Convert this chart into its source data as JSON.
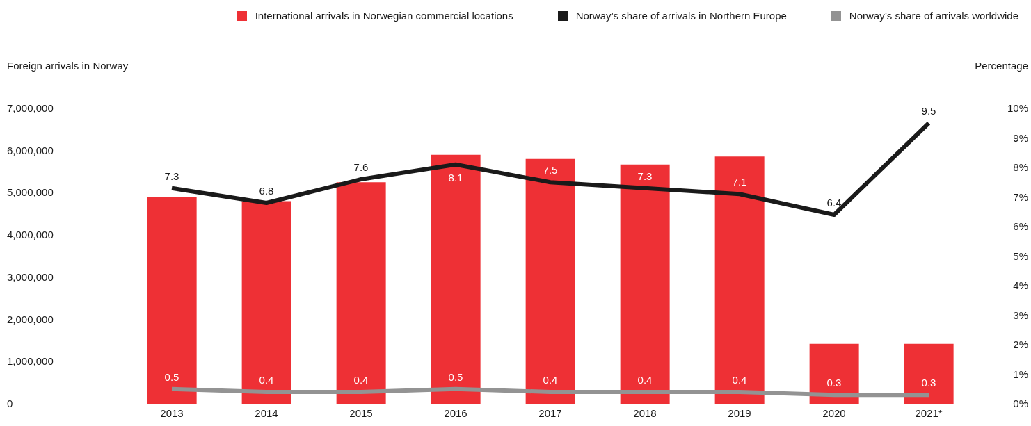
{
  "chart_data": {
    "type": "bar",
    "categories": [
      "2013",
      "2014",
      "2015",
      "2016",
      "2017",
      "2018",
      "2019",
      "2020",
      "2021*"
    ],
    "ylabel": "Foreign arrivals in Norway",
    "y2label": "Percentage",
    "series": [
      {
        "name": "International arrivals in Norwegian commercial locations",
        "color": "#ee3035",
        "values": [
          4900000,
          4800000,
          5250000,
          5900000,
          5800000,
          5670000,
          5860000,
          1420000,
          1420000
        ]
      },
      {
        "name": "Norway’s share of arrivals in Northern Europe",
        "type": "line",
        "axis": "y2",
        "color": "#1a1a1a",
        "values": [
          7.3,
          6.8,
          7.6,
          8.1,
          7.5,
          7.3,
          7.1,
          6.4,
          9.5
        ],
        "value_labels": [
          "7.3",
          "6.8",
          "7.6",
          "8.1",
          "7.5",
          "7.3",
          "7.1",
          "6.4",
          "9.5"
        ]
      },
      {
        "name": "Norway’s share of arrivals worldwide",
        "type": "line",
        "axis": "y2",
        "color": "#939393",
        "values": [
          0.5,
          0.4,
          0.4,
          0.5,
          0.4,
          0.4,
          0.4,
          0.3,
          0.3
        ],
        "value_labels": [
          "0.5",
          "0.4",
          "0.4",
          "0.5",
          "0.4",
          "0.4",
          "0.4",
          "0.3",
          "0.3"
        ]
      }
    ],
    "ylim": [
      0,
      7000000
    ],
    "yticks": [
      {
        "value": 0,
        "label": "0"
      },
      {
        "value": 1000000,
        "label": "1,000,000"
      },
      {
        "value": 2000000,
        "label": "2,000,000"
      },
      {
        "value": 3000000,
        "label": "3,000,000"
      },
      {
        "value": 4000000,
        "label": "4,000,000"
      },
      {
        "value": 5000000,
        "label": "5,000,000"
      },
      {
        "value": 6000000,
        "label": "6,000,000"
      },
      {
        "value": 7000000,
        "label": "7,000,000"
      }
    ],
    "y2lim": [
      0,
      10
    ],
    "y2ticks": [
      {
        "value": 0,
        "label": "0%"
      },
      {
        "value": 1,
        "label": "1%"
      },
      {
        "value": 2,
        "label": "2%"
      },
      {
        "value": 3,
        "label": "3%"
      },
      {
        "value": 4,
        "label": "4%"
      },
      {
        "value": 5,
        "label": "5%"
      },
      {
        "value": 6,
        "label": "6%"
      },
      {
        "value": 7,
        "label": "7%"
      },
      {
        "value": 8,
        "label": "8%"
      },
      {
        "value": 9,
        "label": "9%"
      },
      {
        "value": 10,
        "label": "10%"
      }
    ],
    "grid": false,
    "legend": "top",
    "marker": "none",
    "line_style": "solid"
  }
}
